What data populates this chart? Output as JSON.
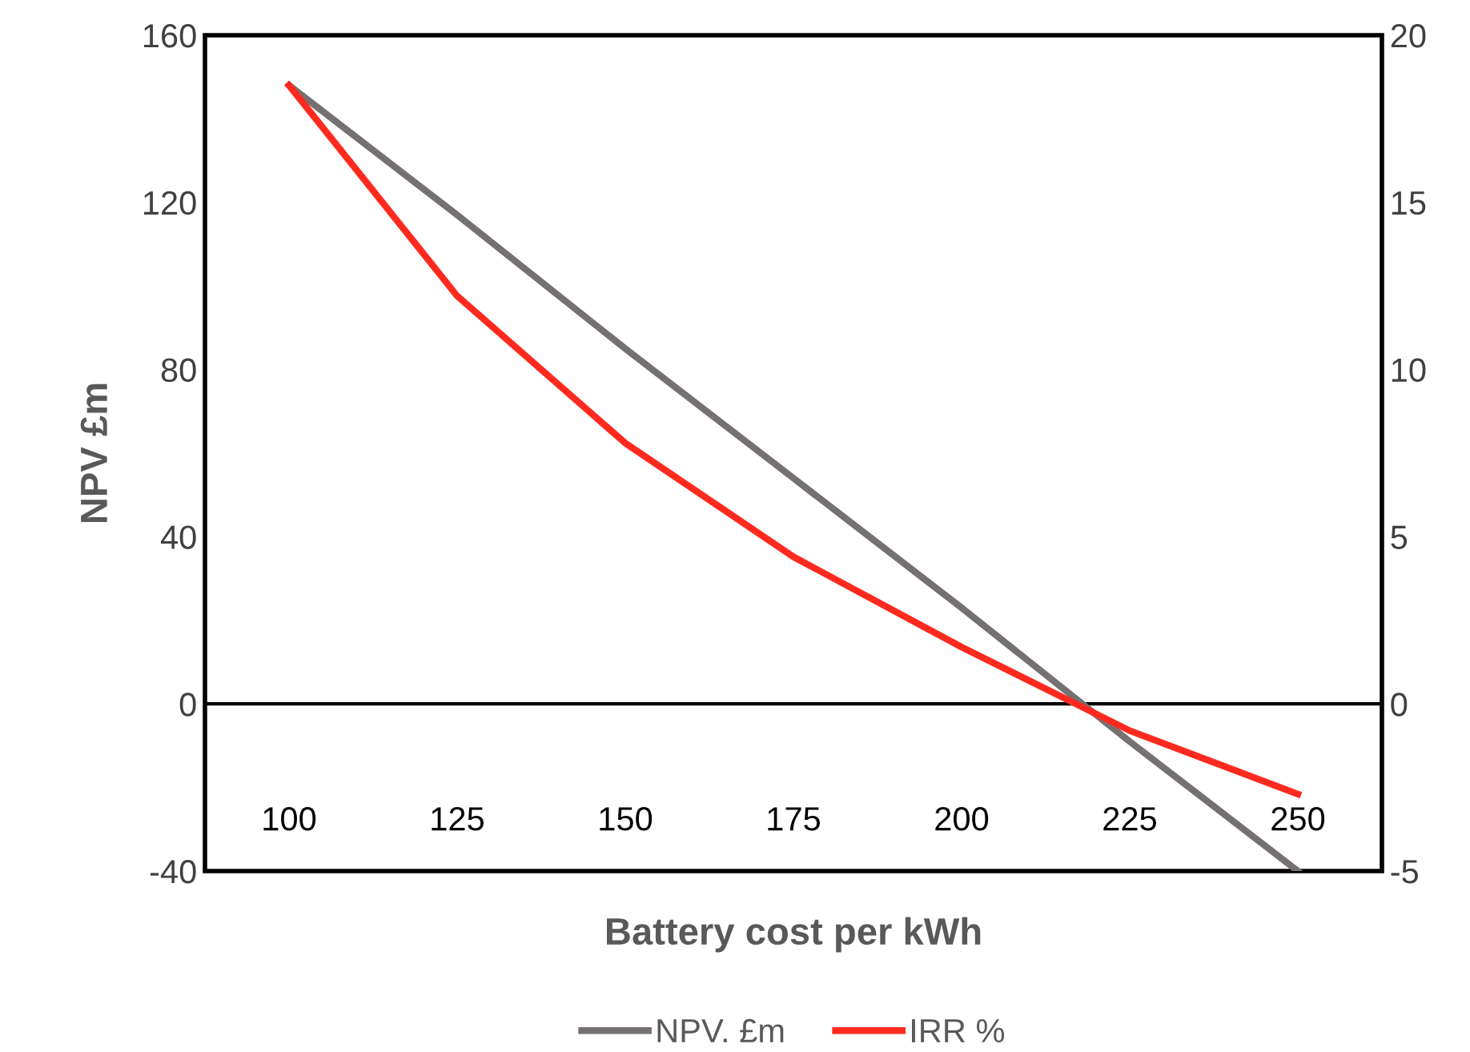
{
  "chart_data": {
    "type": "line",
    "xlabel": "Battery cost per kWh",
    "ylabel": "NPV £m",
    "categories": [
      "100",
      "125",
      "150",
      "175",
      "200",
      "225",
      "250"
    ],
    "series": [
      {
        "name": "NPV. £m",
        "color": "#767171",
        "values": [
          148,
          117,
          85,
          54,
          23,
          -9,
          -40
        ]
      },
      {
        "name": "IRR %",
        "color": "#ff2a1f",
        "axis": "y2",
        "values": [
          18.5,
          12.2,
          7.8,
          4.4,
          1.7,
          -0.8,
          -2.7
        ]
      }
    ],
    "ylim": [
      -40,
      160
    ],
    "yticks": [
      -40,
      0,
      40,
      80,
      120,
      160
    ],
    "y2lim": [
      -5,
      20
    ],
    "y2ticks": [
      -5,
      0,
      5,
      10,
      15,
      20
    ],
    "ref_lines": [
      {
        "axis": "y",
        "value": 0,
        "color": "#000000",
        "line_style": "solid"
      }
    ],
    "grid": false,
    "legend": "bottom",
    "marker": "none",
    "line_style": "solid"
  }
}
